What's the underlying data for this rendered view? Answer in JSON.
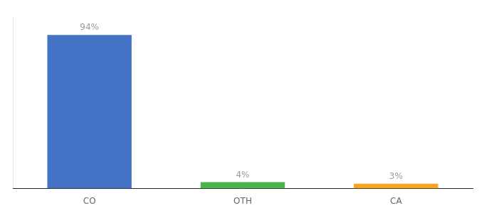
{
  "chart_data": {
    "type": "bar",
    "categories": [
      "CO",
      "OTH",
      "CA"
    ],
    "values": [
      94,
      4,
      3
    ],
    "value_labels": [
      "94%",
      "4%",
      "3%"
    ],
    "colors": [
      "#4472c4",
      "#4db34d",
      "#f5a623"
    ],
    "ylim": [
      0,
      105
    ],
    "data_labels": true,
    "tick_labels": "x",
    "grid": false
  }
}
